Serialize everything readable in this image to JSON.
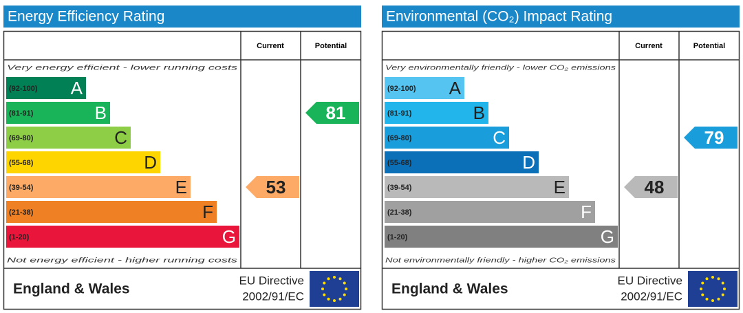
{
  "panels": [
    {
      "title": "Energy Efficiency Rating",
      "headers": [
        "Current",
        "Potential"
      ],
      "top_note": "Very energy efficient - lower running costs",
      "bottom_note": "Not energy efficient - higher running costs",
      "bands": [
        {
          "range": "(92-100)",
          "letter": "A",
          "color": "#008054",
          "text_color": "#ffffff"
        },
        {
          "range": "(81-91)",
          "letter": "B",
          "color": "#19b459",
          "text_color": "#ffffff"
        },
        {
          "range": "(69-80)",
          "letter": "C",
          "color": "#8dce46",
          "text_color": "#222222"
        },
        {
          "range": "(55-68)",
          "letter": "D",
          "color": "#ffd500",
          "text_color": "#222222"
        },
        {
          "range": "(39-54)",
          "letter": "E",
          "color": "#fcaa65",
          "text_color": "#222222"
        },
        {
          "range": "(21-38)",
          "letter": "F",
          "color": "#ef8023",
          "text_color": "#222222"
        },
        {
          "range": "(1-20)",
          "letter": "G",
          "color": "#e9153b",
          "text_color": "#ffffff"
        }
      ],
      "current": 53,
      "potential": 81,
      "region": "England & Wales",
      "directive": [
        "EU Directive",
        "2002/91/EC"
      ]
    },
    {
      "title": "Environmental (CO₂) Impact Rating",
      "headers": [
        "Current",
        "Potential"
      ],
      "top_note": "Very environmentally friendly - lower CO₂ emissions",
      "bottom_note": "Not environmentally friendly - higher CO₂ emissions",
      "bands": [
        {
          "range": "(92-100)",
          "letter": "A",
          "color": "#55c4f0",
          "text_color": "#222222"
        },
        {
          "range": "(81-91)",
          "letter": "B",
          "color": "#22b5eb",
          "text_color": "#222222"
        },
        {
          "range": "(69-80)",
          "letter": "C",
          "color": "#1a9ddb",
          "text_color": "#ffffff"
        },
        {
          "range": "(55-68)",
          "letter": "D",
          "color": "#0c70b8",
          "text_color": "#ffffff"
        },
        {
          "range": "(39-54)",
          "letter": "E",
          "color": "#b9b9b9",
          "text_color": "#222222"
        },
        {
          "range": "(21-38)",
          "letter": "F",
          "color": "#a0a0a0",
          "text_color": "#ffffff"
        },
        {
          "range": "(1-20)",
          "letter": "G",
          "color": "#808080",
          "text_color": "#ffffff"
        }
      ],
      "current": 48,
      "potential": 79,
      "region": "England & Wales",
      "directive": [
        "EU Directive",
        "2002/91/EC"
      ]
    }
  ]
}
